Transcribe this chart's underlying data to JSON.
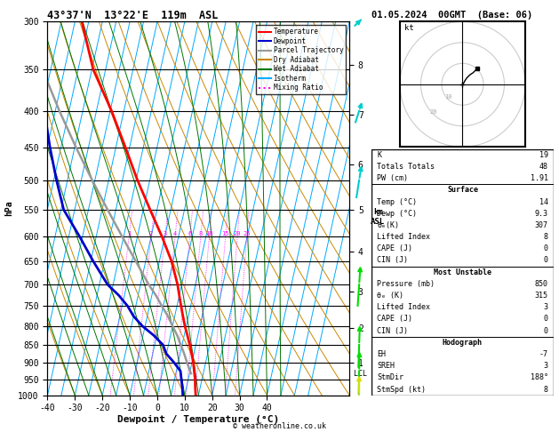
{
  "title_left": "43°37'N  13°22'E  119m  ASL",
  "title_right": "01.05.2024  00GMT  (Base: 06)",
  "xlabel": "Dewpoint / Temperature (°C)",
  "ylabel_left": "hPa",
  "pressure_levels": [
    300,
    350,
    400,
    450,
    500,
    550,
    600,
    650,
    700,
    750,
    800,
    850,
    900,
    950,
    1000
  ],
  "pressure_labels": [
    "300",
    "350",
    "400",
    "450",
    "500",
    "550",
    "600",
    "650",
    "700",
    "750",
    "800",
    "850",
    "900",
    "950",
    "1000"
  ],
  "xlim": [
    -40,
    40
  ],
  "p_min": 300,
  "p_max": 1000,
  "skew": 30,
  "temp_color": "#ff0000",
  "dewp_color": "#0000cc",
  "parcel_color": "#999999",
  "dry_adiabat_color": "#cc8800",
  "wet_adiabat_color": "#007700",
  "isotherm_color": "#00aaff",
  "mixing_ratio_color": "#ff00ff",
  "km_ticks": [
    1,
    2,
    3,
    4,
    5,
    6,
    7,
    8
  ],
  "km_pressures": [
    900,
    805,
    715,
    630,
    550,
    475,
    405,
    345
  ],
  "lcl_pressure": 932,
  "mixing_ratio_values": [
    1,
    2,
    3,
    4,
    6,
    8,
    10,
    15,
    20,
    25
  ],
  "legend_items": [
    "Temperature",
    "Dewpoint",
    "Parcel Trajectory",
    "Dry Adiabat",
    "Wet Adiabat",
    "Isotherm",
    "Mixing Ratio"
  ],
  "legend_colors": [
    "#ff0000",
    "#0000cc",
    "#999999",
    "#cc8800",
    "#007700",
    "#00aaff",
    "#ff00ff"
  ],
  "legend_styles": [
    "solid",
    "solid",
    "solid",
    "solid",
    "solid",
    "solid",
    "dotted"
  ],
  "right_panel": {
    "K": 19,
    "Totals_Totals": 48,
    "PW_cm": "1.91",
    "Surface_Temp": 14,
    "Surface_Dewp": "9.3",
    "Surface_theta_e": 307,
    "Surface_LI": 8,
    "Surface_CAPE": 0,
    "Surface_CIN": 0,
    "MU_Pressure": 850,
    "MU_theta_e": 315,
    "MU_LI": 3,
    "MU_CAPE": 0,
    "MU_CIN": 0,
    "EH": -7,
    "SREH": 3,
    "StmDir": "188°",
    "StmSpd": 8
  },
  "temp_profile": {
    "pressure": [
      1000,
      975,
      950,
      925,
      900,
      875,
      850,
      825,
      800,
      775,
      750,
      725,
      700,
      650,
      600,
      550,
      500,
      450,
      400,
      350,
      300
    ],
    "temperature": [
      14,
      13.2,
      12.5,
      11.5,
      10.5,
      9.2,
      7.8,
      6.2,
      4.5,
      3.0,
      1.5,
      0.0,
      -1.5,
      -5.5,
      -11.0,
      -17.5,
      -24.5,
      -31.5,
      -39.5,
      -49.5,
      -57.5
    ]
  },
  "dewp_profile": {
    "pressure": [
      1000,
      975,
      950,
      925,
      900,
      875,
      850,
      825,
      800,
      775,
      750,
      725,
      700,
      650,
      600,
      550,
      500,
      450,
      400,
      350,
      300
    ],
    "dewpoint": [
      9.3,
      8.5,
      7.5,
      6.5,
      3.5,
      0.0,
      -2.0,
      -6.0,
      -11.0,
      -15.0,
      -18.0,
      -22.0,
      -27.0,
      -34.0,
      -41.0,
      -49.0,
      -54.0,
      -59.0,
      -64.0,
      -69.0,
      -74.0
    ]
  },
  "parcel_profile": {
    "pressure": [
      932,
      900,
      875,
      850,
      825,
      800,
      775,
      750,
      725,
      700,
      650,
      600,
      550,
      500,
      450,
      400,
      350,
      300
    ],
    "temperature": [
      10.5,
      8.2,
      6.5,
      4.5,
      2.5,
      0.0,
      -2.5,
      -5.5,
      -8.5,
      -12.0,
      -18.5,
      -25.5,
      -33.0,
      -41.0,
      -49.5,
      -58.5,
      -68.0,
      -77.0
    ]
  },
  "wind_barbs": {
    "pressure": [
      1000,
      925,
      850,
      700,
      500,
      400,
      300
    ],
    "direction": [
      180,
      185,
      190,
      200,
      220,
      240,
      260
    ],
    "speed": [
      5,
      8,
      10,
      15,
      20,
      25,
      30
    ],
    "colors": [
      "#dddd00",
      "#00dd00",
      "#00dd00",
      "#00dd00",
      "#00cccc",
      "#00cccc",
      "#00cccc"
    ]
  }
}
